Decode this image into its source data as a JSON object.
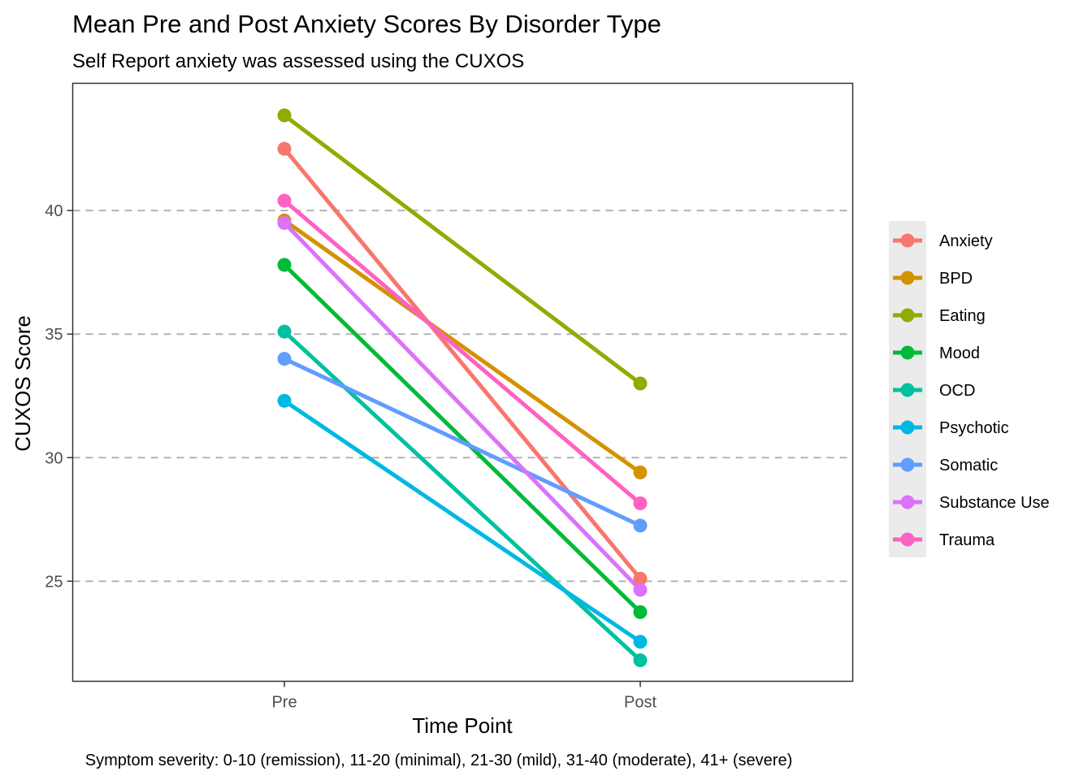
{
  "chart_data": {
    "type": "line",
    "title": "Mean Pre and Post Anxiety Scores By Disorder Type",
    "subtitle": "Self Report anxiety was assessed using the CUXOS",
    "xlabel": "Time Point",
    "ylabel": "CUXOS Score",
    "caption": "Symptom severity: 0-10 (remission), 11-20 (minimal), 21-30 (mild), 31-40 (moderate), 41+ (severe)",
    "categories": [
      "Pre",
      "Post"
    ],
    "ylim": [
      20.95,
      45.15
    ],
    "yticks": [
      25,
      30,
      35,
      40
    ],
    "grid": "major y dashed",
    "legend_position": "right",
    "series": [
      {
        "name": "Anxiety",
        "color": "#F8766D",
        "values": [
          42.5,
          25.1
        ]
      },
      {
        "name": "BPD",
        "color": "#D39200",
        "values": [
          39.6,
          29.4
        ]
      },
      {
        "name": "Eating",
        "color": "#93AA00",
        "values": [
          43.85,
          33.0
        ]
      },
      {
        "name": "Mood",
        "color": "#00BA38",
        "values": [
          37.8,
          23.75
        ]
      },
      {
        "name": "OCD",
        "color": "#00C19F",
        "values": [
          35.1,
          21.8
        ]
      },
      {
        "name": "Psychotic",
        "color": "#00B9E3",
        "values": [
          32.3,
          22.55
        ]
      },
      {
        "name": "Somatic",
        "color": "#619CFF",
        "values": [
          34.0,
          27.25
        ]
      },
      {
        "name": "Substance Use",
        "color": "#DB72FB",
        "values": [
          39.5,
          24.65
        ]
      },
      {
        "name": "Trauma",
        "color": "#FF61C3",
        "values": [
          40.4,
          28.15
        ]
      }
    ]
  }
}
